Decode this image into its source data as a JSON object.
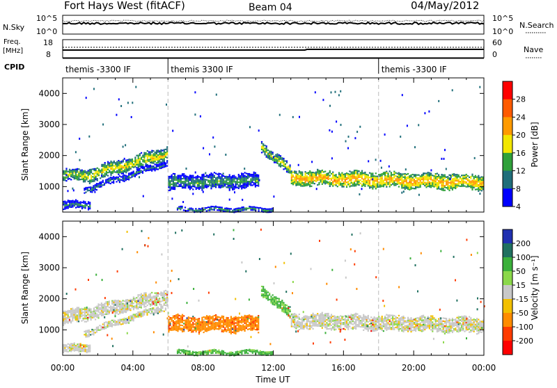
{
  "header": {
    "station": "Fort Hays West (fitACF)",
    "beam": "Beam 04",
    "date": "04/May/2012"
  },
  "top_panels": {
    "nsky_label": "N.Sky",
    "nsky_tick_hi": "10^5",
    "nsky_tick_lo": "10^0",
    "nsearch_label": "N.Search",
    "nsearch_tick_hi": "10^5",
    "nsearch_tick_lo": "10^0",
    "freq_label_1": "Freq.",
    "freq_label_2": "[MHz]",
    "freq_tick_hi": "18",
    "freq_tick_lo": "8",
    "nave_label": "Nave",
    "nave_tick_hi": "60",
    "nave_tick_lo": "0",
    "cpid_label": "CPID",
    "cpid_segments": [
      {
        "label": "themis -3300 IF",
        "start_h": 0,
        "end_h": 6
      },
      {
        "label": "themis 3300 IF",
        "start_h": 6,
        "end_h": 18
      },
      {
        "label": "themis -3300 IF",
        "start_h": 18,
        "end_h": 24
      }
    ]
  },
  "axes": {
    "ylabel": "Slant Range [km]",
    "xlabel": "Time UT",
    "x_ticks": [
      "00:00",
      "04:00",
      "08:00",
      "12:00",
      "16:00",
      "20:00",
      "00:00"
    ],
    "y_ticks": [
      "1000",
      "2000",
      "3000",
      "4000"
    ]
  },
  "colorbars": {
    "power_title": "Power [dB]",
    "power_ticks": [
      "28",
      "24",
      "20",
      "16",
      "12",
      "8",
      "4"
    ],
    "power_colors": [
      "#ff0000",
      "#ff5a00",
      "#ff9a00",
      "#f2e600",
      "#2fa03a",
      "#1f6e7a",
      "#0000ff"
    ],
    "velocity_title": "Velocity [m s⁻¹]",
    "velocity_ticks": [
      "200",
      "100",
      "50",
      "15",
      "-15",
      "-50",
      "-100",
      "-200"
    ],
    "velocity_colors": [
      "#2030b0",
      "#207060",
      "#3bb03b",
      "#8bd84a",
      "#c8c8c8",
      "#f2c000",
      "#ff8c00",
      "#ff3b00",
      "#ff0000"
    ]
  },
  "chart_data": [
    {
      "type": "heatmap",
      "title": "Power [dB]",
      "xlabel": "Time UT",
      "ylabel": "Slant Range [km]",
      "xlim": [
        0,
        24
      ],
      "ylim": [
        180,
        4500
      ],
      "value_range": [
        0,
        30
      ],
      "bands": [
        {
          "t": [
            0.0,
            1.5
          ],
          "r_center": [
            1380,
            1380
          ],
          "r_half": 180,
          "power": 14
        },
        {
          "t": [
            1.5,
            6.0
          ],
          "r_center": [
            1380,
            2100
          ],
          "r_half": 200,
          "power": 15
        },
        {
          "t": [
            1.2,
            6.0
          ],
          "r_center": [
            900,
            1800
          ],
          "r_half": 90,
          "power": 8
        },
        {
          "t": [
            6.0,
            11.2
          ],
          "r_center": [
            1150,
            1200
          ],
          "r_half": 220,
          "power": 10
        },
        {
          "t": [
            11.3,
            13.0
          ],
          "r_center": [
            2300,
            1500
          ],
          "r_half": 160,
          "power": 14
        },
        {
          "t": [
            13.0,
            24.0
          ],
          "r_center": [
            1300,
            1150
          ],
          "r_half": 220,
          "power": 18
        },
        {
          "t": [
            0.0,
            1.6
          ],
          "r_center": [
            400,
            450
          ],
          "r_half": 120,
          "power": 8
        },
        {
          "t": [
            6.5,
            12.0
          ],
          "r_center": [
            280,
            280
          ],
          "r_half": 60,
          "power": 10
        }
      ]
    },
    {
      "type": "heatmap",
      "title": "Velocity [m s⁻¹]",
      "xlabel": "Time UT",
      "ylabel": "Slant Range [km]",
      "xlim": [
        0,
        24
      ],
      "ylim": [
        180,
        4500
      ],
      "value_range": [
        -250,
        250
      ],
      "bands": [
        {
          "t": [
            0.0,
            6.0
          ],
          "r_center": [
            1380,
            2100
          ],
          "r_half": 200,
          "velocity": 0
        },
        {
          "t": [
            1.2,
            6.0
          ],
          "r_center": [
            900,
            1800
          ],
          "r_half": 90,
          "velocity": 0
        },
        {
          "t": [
            6.0,
            11.2
          ],
          "r_center": [
            1200,
            1200
          ],
          "r_half": 240,
          "velocity": -60
        },
        {
          "t": [
            11.3,
            13.0
          ],
          "r_center": [
            2300,
            1500
          ],
          "r_half": 160,
          "velocity": 40
        },
        {
          "t": [
            13.0,
            24.0
          ],
          "r_center": [
            1300,
            1150
          ],
          "r_half": 220,
          "velocity": 0
        },
        {
          "t": [
            0.0,
            1.6
          ],
          "r_center": [
            400,
            450
          ],
          "r_half": 120,
          "velocity": 0
        },
        {
          "t": [
            6.5,
            12.0
          ],
          "r_center": [
            280,
            280
          ],
          "r_half": 60,
          "velocity": 40
        }
      ]
    }
  ]
}
